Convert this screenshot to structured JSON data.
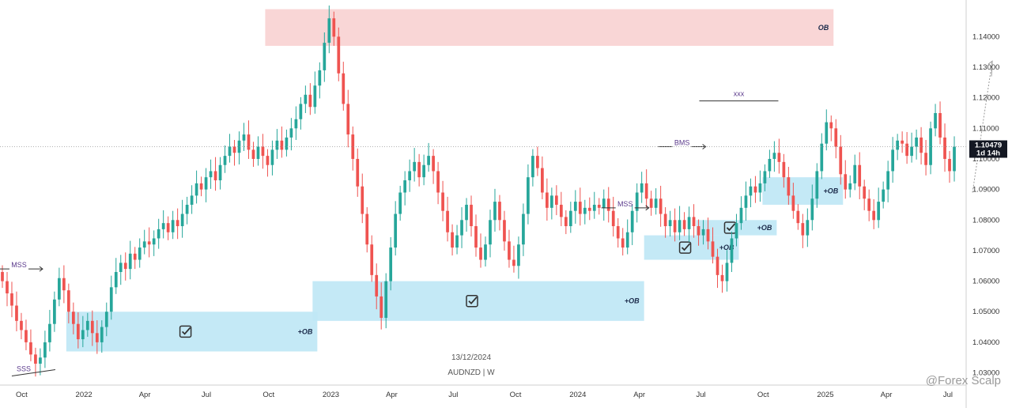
{
  "chart_data": {
    "type": "candlestick",
    "symbol": "AUDNZD",
    "timeframe": "W",
    "footer_date": "13/12/2024",
    "symbol_line": "AUDNZD | W",
    "price_label": "1.10479",
    "countdown_label": "1d 14h",
    "watermark": "@Forex Scalp",
    "ylim": [
      1.026,
      1.152
    ],
    "xlim": [
      "2021-08-30",
      "2025-07-28"
    ],
    "y_ticks": [
      "1.14000",
      "1.13000",
      "1.12000",
      "1.11000",
      "1.10000",
      "1.09000",
      "1.08000",
      "1.07000",
      "1.06000",
      "1.05000",
      "1.04000",
      "1.03000"
    ],
    "y_tick_values": [
      1.14,
      1.13,
      1.12,
      1.11,
      1.1,
      1.09,
      1.08,
      1.07,
      1.06,
      1.05,
      1.04,
      1.03
    ],
    "x_ticks": [
      {
        "label": "Oct",
        "date": "2021-10-01"
      },
      {
        "label": "2022",
        "date": "2022-01-01"
      },
      {
        "label": "Apr",
        "date": "2022-04-01"
      },
      {
        "label": "Jul",
        "date": "2022-07-01"
      },
      {
        "label": "Oct",
        "date": "2022-10-01"
      },
      {
        "label": "2023",
        "date": "2023-01-01"
      },
      {
        "label": "Apr",
        "date": "2023-04-01"
      },
      {
        "label": "Jul",
        "date": "2023-07-01"
      },
      {
        "label": "Oct",
        "date": "2023-10-01"
      },
      {
        "label": "2024",
        "date": "2024-01-01"
      },
      {
        "label": "Apr",
        "date": "2024-04-01"
      },
      {
        "label": "Jul",
        "date": "2024-07-01"
      },
      {
        "label": "Oct",
        "date": "2024-10-01"
      },
      {
        "label": "2025",
        "date": "2025-01-01"
      },
      {
        "label": "Apr",
        "date": "2025-04-01"
      },
      {
        "label": "Jul",
        "date": "2025-07-01"
      }
    ],
    "closes": [
      1.06,
      1.056,
      1.052,
      1.047,
      1.044,
      1.04,
      1.036,
      1.033,
      1.035,
      1.04,
      1.046,
      1.054,
      1.061,
      1.057,
      1.05,
      1.046,
      1.041,
      1.044,
      1.047,
      1.043,
      1.04,
      1.045,
      1.05,
      1.058,
      1.063,
      1.066,
      1.064,
      1.069,
      1.067,
      1.071,
      1.073,
      1.072,
      1.074,
      1.077,
      1.079,
      1.076,
      1.08,
      1.078,
      1.082,
      1.085,
      1.088,
      1.092,
      1.09,
      1.094,
      1.096,
      1.093,
      1.098,
      1.101,
      1.104,
      1.102,
      1.106,
      1.108,
      1.103,
      1.1,
      1.104,
      1.101,
      1.098,
      1.103,
      1.106,
      1.103,
      1.107,
      1.11,
      1.113,
      1.118,
      1.121,
      1.117,
      1.124,
      1.129,
      1.138,
      1.146,
      1.14,
      1.128,
      1.118,
      1.108,
      1.1,
      1.091,
      1.082,
      1.072,
      1.062,
      1.055,
      1.048,
      1.06,
      1.071,
      1.082,
      1.089,
      1.093,
      1.096,
      1.099,
      1.094,
      1.098,
      1.101,
      1.096,
      1.089,
      1.083,
      1.076,
      1.071,
      1.075,
      1.08,
      1.085,
      1.078,
      1.071,
      1.067,
      1.072,
      1.08,
      1.086,
      1.08,
      1.073,
      1.067,
      1.065,
      1.072,
      1.082,
      1.094,
      1.101,
      1.097,
      1.089,
      1.084,
      1.088,
      1.085,
      1.081,
      1.078,
      1.083,
      1.086,
      1.082,
      1.084,
      1.083,
      1.085,
      1.084,
      1.087,
      1.083,
      1.078,
      1.074,
      1.071,
      1.076,
      1.083,
      1.089,
      1.092,
      1.087,
      1.084,
      1.087,
      1.082,
      1.078,
      1.08,
      1.076,
      1.08,
      1.077,
      1.081,
      1.078,
      1.075,
      1.077,
      1.073,
      1.068,
      1.062,
      1.06,
      1.066,
      1.074,
      1.079,
      1.084,
      1.088,
      1.091,
      1.089,
      1.092,
      1.096,
      1.1,
      1.102,
      1.099,
      1.094,
      1.088,
      1.083,
      1.079,
      1.075,
      1.08,
      1.087,
      1.096,
      1.105,
      1.112,
      1.11,
      1.104,
      1.095,
      1.09,
      1.092,
      1.098,
      1.091,
      1.087,
      1.083,
      1.08,
      1.086,
      1.09,
      1.096,
      1.103,
      1.106,
      1.105,
      1.101,
      1.104,
      1.107,
      1.102,
      1.098,
      1.11,
      1.115,
      1.107,
      1.1,
      1.096,
      1.104
    ],
    "zones": [
      {
        "label": "OB",
        "type": "bearish",
        "x1": "2022-09-26",
        "x2": "2025-01-13",
        "y1": 1.137,
        "y2": 1.149
      },
      {
        "label": "+OB",
        "type": "bullish",
        "x1": "2021-12-06",
        "x2": "2022-12-12",
        "y1": 1.037,
        "y2": 1.05,
        "check": true
      },
      {
        "label": "+OB",
        "type": "bullish",
        "x1": "2022-12-05",
        "x2": "2024-04-08",
        "y1": 1.047,
        "y2": 1.06,
        "check": true
      },
      {
        "label": "+OB",
        "type": "bullish",
        "x1": "2024-04-08",
        "x2": "2024-08-26",
        "y1": 1.067,
        "y2": 1.075,
        "check": true
      },
      {
        "label": "+OB",
        "type": "bullish",
        "x1": "2024-06-24",
        "x2": "2024-10-21",
        "y1": 1.075,
        "y2": 1.08,
        "check": true
      },
      {
        "label": "+OB",
        "type": "bullish",
        "x1": "2024-09-30",
        "x2": "2025-01-27",
        "y1": 1.085,
        "y2": 1.094,
        "check": false
      }
    ],
    "annotations": [
      {
        "text": "MSS",
        "date": "2021-09-27",
        "price": 1.064
      },
      {
        "text": "SSS",
        "date": "2021-10-04",
        "price": 1.03
      },
      {
        "text": "MSS",
        "date": "2024-03-11",
        "price": 1.084
      },
      {
        "text": "BMS",
        "date": "2024-06-03",
        "price": 1.104
      },
      {
        "text": "xxx",
        "date": "2024-08-26",
        "price": 1.12
      }
    ]
  }
}
